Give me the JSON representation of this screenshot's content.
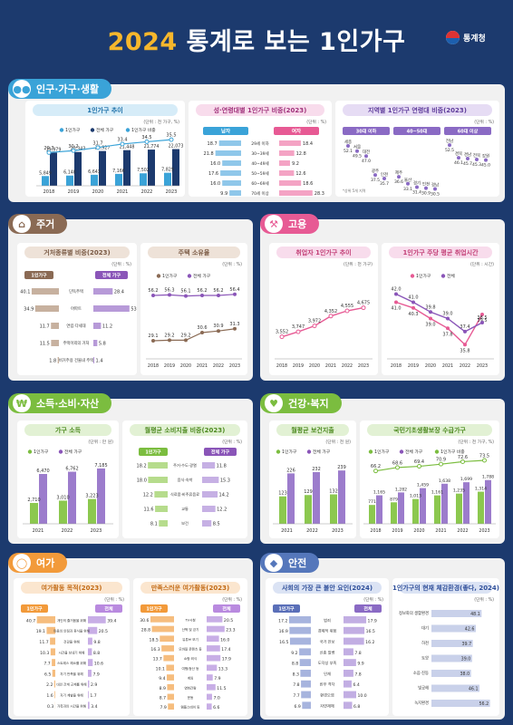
{
  "header": {
    "year": "2024",
    "title": " 통계로 보는 1인가구",
    "logo": "통계청"
  },
  "colors": {
    "blue": "#3aa3d8",
    "navy": "#1c3a6e",
    "pink": "#e75a94",
    "purple": "#8a55b8",
    "orange": "#f29a3a",
    "green": "#7bbd3f",
    "brown": "#8a6a54"
  },
  "icons": {
    "pop": "people-icon",
    "housing": "house-icon",
    "employment": "hammer-icon",
    "income": "coin-icon",
    "health": "heart-icon",
    "leisure": "bicycle-icon",
    "safety": "shield-icon"
  },
  "sections": {
    "pop": "인구·가구·생활",
    "housing": "주거",
    "employment": "고용",
    "income": "소득·소비·자산",
    "health": "건강·복지",
    "leisure": "여가",
    "safety": "안전"
  },
  "chart_data": [
    {
      "id": "hh-trend",
      "type": "bar",
      "title": "1인가구 추이",
      "unit": "(단위 : 천 가구, %)",
      "legend": [
        "1인가구",
        "전체 가구",
        "1인가구 비중"
      ],
      "categories": [
        "2018",
        "2019",
        "2020",
        "2021",
        "2022",
        "2023"
      ],
      "series": [
        {
          "name": "1인가구",
          "values": [
            5849,
            6148,
            6643,
            7166,
            7502,
            7829
          ],
          "labels": [
            "5,849",
            "6,148",
            "6,643",
            "7,166",
            "7,502",
            "7,829"
          ]
        },
        {
          "name": "전체 가구",
          "values": [
            19979,
            20343,
            20927,
            21448,
            21774,
            22073
          ],
          "labels": [
            "19,979",
            "20,343",
            "20,927",
            "21,448",
            "21,774",
            "22,073"
          ]
        },
        {
          "name": "1인가구 비중",
          "values": [
            29.3,
            30.2,
            31.7,
            33.4,
            34.5,
            35.5
          ],
          "labels": [
            "29.3",
            "30.2",
            "31.7",
            "33.4",
            "34.5",
            "35.5"
          ]
        }
      ]
    },
    {
      "id": "age-sex",
      "type": "bar",
      "title": "성·연령대별 1인가구 비중(2023)",
      "unit": "(단위 : %)",
      "groups": [
        "남자",
        "여자"
      ],
      "categories": [
        "29세 이하",
        "30~39세",
        "40~49세",
        "50~59세",
        "60~69세",
        "70세 이상"
      ],
      "series": [
        {
          "name": "남자",
          "values": [
            18.7,
            21.8,
            16.0,
            17.6,
            16.0,
            9.9
          ],
          "labels": [
            "18.7",
            "21.8",
            "16.0",
            "17.6",
            "16.0",
            "9.9"
          ]
        },
        {
          "name": "여자",
          "values": [
            18.4,
            12.8,
            9.2,
            12.6,
            18.6,
            28.3
          ],
          "labels": [
            "18.4",
            "12.8",
            "9.2",
            "12.6",
            "18.6",
            "28.3"
          ]
        }
      ]
    },
    {
      "id": "region-age",
      "type": "scatter",
      "title": "지역별 1인가구 연령대 비중(2023)",
      "unit": "(단위 : %)",
      "groups": [
        "30대 이하",
        "40~50대",
        "60대 이상"
      ],
      "points": [
        {
          "g": 0,
          "name": "세종",
          "v": 52.1
        },
        {
          "g": 0,
          "name": "서울",
          "v": 49.5
        },
        {
          "g": 0,
          "name": "대전",
          "v": 47.0
        },
        {
          "g": 0,
          "name": "광주",
          "v": 37.5
        },
        {
          "g": 0,
          "name": "인천",
          "v": 35.7
        },
        {
          "g": 1,
          "name": "제주",
          "v": 36.6
        },
        {
          "g": 1,
          "name": "울산",
          "v": 33.1
        },
        {
          "g": 1,
          "name": "경기",
          "v": 31.4
        },
        {
          "g": 1,
          "name": "인천",
          "v": 30.9
        },
        {
          "g": 1,
          "name": "경남",
          "v": 30.5
        },
        {
          "g": 2,
          "name": "전남",
          "v": 52.5
        },
        {
          "g": 2,
          "name": "경북",
          "v": 46.1
        },
        {
          "g": 2,
          "name": "경남",
          "v": 45.7
        },
        {
          "g": 2,
          "name": "전북",
          "v": 45.3
        },
        {
          "g": 2,
          "name": "강원",
          "v": 45.0
        }
      ],
      "note": "*상위 5개 지역"
    },
    {
      "id": "dwelling",
      "type": "bar",
      "title": "거처종류별 비중(2023)",
      "unit": "(단위 : %)",
      "groups": [
        "1인가구",
        "전체 가구"
      ],
      "categories": [
        "단독주택",
        "아파트",
        "연립·다세대",
        "주택이외의 거처",
        "비거주용 건물내 주택"
      ],
      "series": [
        {
          "name": "1인가구",
          "values": [
            40.1,
            34.9,
            11.7,
            11.5,
            1.8
          ],
          "labels": [
            "40.1",
            "34.9",
            "11.7",
            "11.5",
            "1.8"
          ]
        },
        {
          "name": "전체 가구",
          "values": [
            28.4,
            53.1,
            11.2,
            5.8,
            1.4
          ],
          "labels": [
            "28.4",
            "53.1",
            "11.2",
            "5.8",
            "1.4"
          ]
        }
      ]
    },
    {
      "id": "ownership",
      "type": "line",
      "title": "주택 소유율",
      "unit": "(단위 : %)",
      "legend": [
        "1인가구",
        "전체 가구"
      ],
      "categories": [
        "2018",
        "2019",
        "2020",
        "2021",
        "2022",
        "2023"
      ],
      "series": [
        {
          "name": "1인가구",
          "values": [
            29.1,
            29.2,
            29.2,
            30.6,
            30.9,
            31.3
          ],
          "labels": [
            "29.1",
            "29.2",
            "29.2",
            "30.6",
            "30.9",
            "31.3"
          ]
        },
        {
          "name": "전체 가구",
          "values": [
            56.2,
            56.3,
            56.1,
            56.2,
            56.2,
            56.4
          ],
          "labels": [
            "56.2",
            "56.3",
            "56.1",
            "56.2",
            "56.2",
            "56.4"
          ]
        }
      ]
    },
    {
      "id": "employed",
      "type": "line",
      "title": "취업자 1인가구 추이",
      "unit": "(단위 : 천 가구)",
      "categories": [
        "2018",
        "2019",
        "2020",
        "2021",
        "2022",
        "2023"
      ],
      "series": [
        {
          "values": [
            3552,
            3747,
            3972,
            4352,
            4555,
            4675
          ],
          "labels": [
            "3,552",
            "3,747",
            "3,972",
            "4,352",
            "4,555",
            "4,675"
          ]
        }
      ]
    },
    {
      "id": "work-hours",
      "type": "line",
      "title": "1인가구 주당 평균 취업시간",
      "unit": "(단위 : 시간)",
      "legend": [
        "1인가구",
        "전체"
      ],
      "categories": [
        "2018",
        "2019",
        "2020",
        "2021",
        "2022",
        "2023"
      ],
      "series": [
        {
          "name": "1인가구",
          "values": [
            41.0,
            40.3,
            39.0,
            37.8,
            35.8,
            39.5
          ],
          "labels": [
            "41.0",
            "40.3",
            "39.0",
            "37.8",
            "35.8",
            "39.5"
          ]
        },
        {
          "name": "전체",
          "values": [
            42.0,
            41.0,
            39.8,
            39.0,
            37.4,
            38.5
          ],
          "labels": [
            "42.0",
            "41.0",
            "39.8",
            "39.0",
            "37.4",
            "38.5"
          ]
        }
      ]
    },
    {
      "id": "income",
      "type": "bar",
      "title": "가구 소득",
      "unit": "(단위 : 만 원)",
      "legend": [
        "1인가구",
        "전체 가구"
      ],
      "categories": [
        "2021",
        "2022",
        "2023"
      ],
      "series": [
        {
          "name": "1인가구",
          "values": [
            2710,
            3010,
            3223
          ],
          "labels": [
            "2,710",
            "3,010",
            "3,223"
          ]
        },
        {
          "name": "전체 가구",
          "values": [
            6470,
            6762,
            7185
          ],
          "labels": [
            "6,470",
            "6,762",
            "7,185"
          ]
        }
      ]
    },
    {
      "id": "spending",
      "type": "bar",
      "title": "월평균 소비지출 비중(2023)",
      "unit": "(단위 : %)",
      "groups": [
        "1인가구",
        "전체 가구"
      ],
      "categories": [
        "주거·수도·광열",
        "음식·숙박",
        "식료품·비주류음료",
        "교통",
        "보건"
      ],
      "series": [
        {
          "name": "1인가구",
          "values": [
            18.2,
            18.0,
            12.2,
            11.6,
            8.1
          ],
          "labels": [
            "18.2",
            "18.0",
            "12.2",
            "11.6",
            "8.1"
          ]
        },
        {
          "name": "전체 가구",
          "values": [
            11.8,
            15.3,
            14.2,
            12.2,
            8.5
          ],
          "labels": [
            "11.8",
            "15.3",
            "14.2",
            "12.2",
            "8.5"
          ]
        }
      ]
    },
    {
      "id": "health-spend",
      "type": "bar",
      "title": "월평균 보건지출",
      "unit": "(단위 : 천 원)",
      "legend": [
        "1인가구",
        "전체 가구"
      ],
      "categories": [
        "2021",
        "2022",
        "2023"
      ],
      "series": [
        {
          "name": "1인가구",
          "values": [
            123,
            129,
            132
          ],
          "labels": [
            "123",
            "129",
            "132"
          ]
        },
        {
          "name": "전체 가구",
          "values": [
            226,
            232,
            239
          ],
          "labels": [
            "226",
            "232",
            "239"
          ]
        }
      ]
    },
    {
      "id": "basic-living",
      "type": "bar",
      "title": "국민기초생활보장 수급가구",
      "unit": "(단위 : 천 가구, %)",
      "legend": [
        "1인가구",
        "전체 가구",
        "1인가구 비중"
      ],
      "categories": [
        "2018",
        "2019",
        "2020",
        "2021",
        "2022",
        "2023"
      ],
      "series": [
        {
          "name": "1인가구",
          "values": [
            771,
            879,
            1013,
            1161,
            1235,
            1314
          ],
          "labels": [
            "771",
            "879",
            "1,013",
            "1,161",
            "1,235",
            "1,314"
          ]
        },
        {
          "name": "전체 가구",
          "values": [
            1165,
            1282,
            1459,
            1638,
            1699,
            1788
          ],
          "labels": [
            "1,165",
            "1,282",
            "1,459",
            "1,638",
            "1,699",
            "1,788"
          ]
        },
        {
          "name": "1인가구 비중",
          "values": [
            66.2,
            68.6,
            69.4,
            70.9,
            72.6,
            73.5
          ],
          "labels": [
            "66.2",
            "68.6",
            "69.4",
            "70.9",
            "72.6",
            "73.5"
          ]
        }
      ]
    },
    {
      "id": "leisure-purpose",
      "type": "bar",
      "title": "여가활동 목적(2023)",
      "unit": "(단위 : %)",
      "groups": [
        "1인가구",
        "전체"
      ],
      "categories": [
        "개인의 즐거움을 위해",
        "마음의 안정과 휴식을 위해",
        "건강을 위해",
        "시간을 보내기 위해",
        "스트레스 해소를 위해",
        "자기 만족을 위해",
        "대인 관계 교제를 위해",
        "자기 계발을 위해",
        "가족과의 시간을 위해"
      ],
      "series": [
        {
          "name": "1인가구",
          "values": [
            40.7,
            19.1,
            11.7,
            10.3,
            7.7,
            6.5,
            2.2,
            1.6,
            0.3
          ],
          "labels": [
            "40.7",
            "19.1",
            "11.7",
            "10.3",
            "7.7",
            "6.5",
            "2.2",
            "1.6",
            "0.3"
          ]
        },
        {
          "name": "전체",
          "values": [
            39.4,
            20.5,
            9.8,
            8.8,
            10.6,
            7.9,
            2.9,
            1.7,
            3.4
          ],
          "labels": [
            "39.4",
            "20.5",
            "9.8",
            "8.8",
            "10.6",
            "7.9",
            "2.9",
            "1.7",
            "3.4"
          ]
        }
      ]
    },
    {
      "id": "leisure-satisfied",
      "type": "bar",
      "title": "만족스러운 여가활동(2023)",
      "unit": "(단위 : %)",
      "groups": [
        "1인가구",
        "전체"
      ],
      "categories": [
        "TV시청",
        "산책 및 걷기",
        "유튜브 보기",
        "모바일 콘텐츠 등",
        "쇼핑·외식",
        "여행/등산 등",
        "게임",
        "영화관람",
        "운동",
        "템플스테이 등"
      ],
      "series": [
        {
          "name": "1인가구",
          "values": [
            30.6,
            28.8,
            18.5,
            16.3,
            13.7,
            10.1,
            9.4,
            8.9,
            8.7,
            7.9
          ],
          "labels": [
            "30.6",
            "28.8",
            "18.5",
            "16.3",
            "13.7",
            "10.1",
            "9.4",
            "8.9",
            "8.7",
            "7.9"
          ]
        },
        {
          "name": "전체",
          "values": [
            20.5,
            23.3,
            16.0,
            17.4,
            17.9,
            13.3,
            7.9,
            11.5,
            7.0,
            6.6
          ],
          "labels": [
            "20.5",
            "23.3",
            "16.0",
            "17.4",
            "17.9",
            "13.3",
            "7.9",
            "11.5",
            "7.0",
            "6.6"
          ]
        }
      ]
    },
    {
      "id": "safety-risk",
      "type": "bar",
      "title": "사회의 가장 큰 불안 요인(2024)",
      "unit": "(단위 : %)",
      "groups": [
        "1인가구",
        "전체"
      ],
      "categories": [
        "범죄",
        "경제적 위험",
        "국가 안보",
        "신종 질병",
        "도덕성 부족",
        "인재",
        "빈부 격차",
        "환경오염",
        "자연재해"
      ],
      "series": [
        {
          "name": "1인가구",
          "values": [
            17.2,
            16.9,
            16.5,
            9.2,
            8.8,
            8.3,
            7.8,
            7.7,
            6.9
          ],
          "labels": [
            "17.2",
            "16.9",
            "16.5",
            "9.2",
            "8.8",
            "8.3",
            "7.8",
            "7.7",
            "6.9"
          ]
        },
        {
          "name": "전체",
          "values": [
            17.9,
            16.5,
            16.2,
            7.8,
            9.9,
            7.8,
            6.4,
            10.0,
            6.8
          ],
          "labels": [
            "17.9",
            "16.5",
            "16.2",
            "7.8",
            "9.9",
            "7.8",
            "6.4",
            "10.0",
            "6.8"
          ]
        }
      ]
    },
    {
      "id": "safety-feel",
      "type": "bar",
      "title": "1인가구의 현재 체감환경(좋다, 2024)",
      "unit": "(단위 : %)",
      "categories": [
        "정보화의 생활환경",
        "대기",
        "하천",
        "토양",
        "소음·진동",
        "빛공해",
        "녹지환경"
      ],
      "series": [
        {
          "values": [
            48.1,
            42.6,
            39.7,
            39.0,
            38.0,
            46.1,
            56.2
          ],
          "labels": [
            "48.1",
            "42.6",
            "39.7",
            "39.0",
            "38.0",
            "46.1",
            "56.2"
          ]
        }
      ]
    }
  ]
}
